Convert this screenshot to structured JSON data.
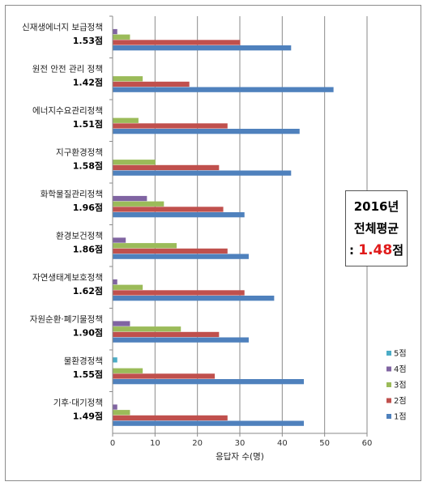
{
  "chart_data": {
    "type": "bar",
    "orientation": "horizontal",
    "categories": [
      {
        "name": "신재생에너지 보급정책",
        "score": "1.53점"
      },
      {
        "name": "원전 안전 관리 정책",
        "score": "1.42점"
      },
      {
        "name": "에너지수요관리정책",
        "score": "1.51점"
      },
      {
        "name": "지구환경정책",
        "score": "1.58점"
      },
      {
        "name": "화학물질관리정책",
        "score": "1.96점"
      },
      {
        "name": "환경보건정책",
        "score": "1.86점"
      },
      {
        "name": "자연생태계보호정책",
        "score": "1.62점"
      },
      {
        "name": "자원순환·폐기물정책",
        "score": "1.90점"
      },
      {
        "name": "물환경정책",
        "score": "1.55점"
      },
      {
        "name": "기후·대기정책",
        "score": "1.49점"
      }
    ],
    "series": [
      {
        "name": "5점",
        "color": "#4bacc6",
        "values": [
          0,
          0,
          0,
          0,
          0,
          0,
          0,
          0,
          1,
          0
        ]
      },
      {
        "name": "4점",
        "color": "#8064a2",
        "values": [
          1,
          0,
          0,
          0,
          8,
          3,
          1,
          4,
          0,
          1
        ]
      },
      {
        "name": "3점",
        "color": "#9bbb59",
        "values": [
          4,
          7,
          6,
          10,
          12,
          15,
          7,
          16,
          7,
          4
        ]
      },
      {
        "name": "2점",
        "color": "#c0504d",
        "values": [
          30,
          18,
          27,
          25,
          26,
          27,
          31,
          25,
          24,
          27
        ]
      },
      {
        "name": "1점",
        "color": "#4f81bd",
        "values": [
          42,
          52,
          44,
          42,
          31,
          32,
          38,
          32,
          45,
          45
        ]
      }
    ],
    "xlabel": "응답자 수(명)",
    "xlim": [
      0,
      60
    ],
    "xticks": [
      "0",
      "10",
      "20",
      "30",
      "40",
      "50",
      "60"
    ],
    "grid": "vertical",
    "legend_position": "right",
    "annotation": {
      "year": "2016년",
      "label": "전체평균",
      "prefix": ": ",
      "value": "1.48",
      "unit": "점"
    }
  }
}
